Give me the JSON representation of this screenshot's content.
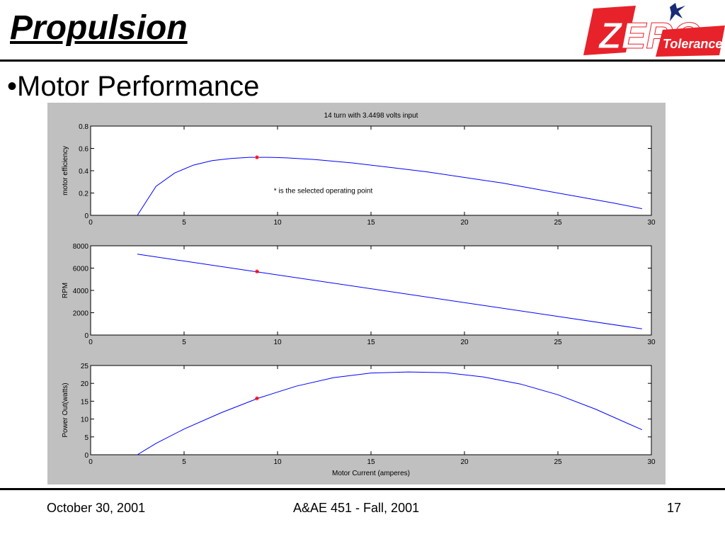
{
  "slide": {
    "title": "Propulsion",
    "subtitle": "•Motor Performance",
    "logo_text_1": "ZERO",
    "logo_text_2": "Tolerance",
    "footer_left": "October 30, 2001",
    "footer_center": "A&AE 451 - Fall, 2001",
    "footer_right": "17"
  },
  "colors": {
    "curve": "#0000ff",
    "marker": "#ff0000",
    "logo_red": "#e8222a",
    "logo_blue": "#1a2a78"
  },
  "chart_data": [
    {
      "type": "line",
      "title": "14 turn with 3.4498 volts input",
      "xlabel": "",
      "ylabel": "motor efficiency",
      "xlim": [
        0,
        30
      ],
      "ylim": [
        0,
        0.8
      ],
      "xticks": [
        "0",
        "5",
        "10",
        "15",
        "20",
        "25",
        "30"
      ],
      "yticks": [
        "0",
        "0.2",
        "0.4",
        "0.6",
        "0.8"
      ],
      "annotation": "* is the selected operating point",
      "series": [
        {
          "x": [
            2.5,
            3.5,
            4.5,
            5.5,
            6.5,
            7.5,
            8.5,
            9.5,
            10.5,
            12,
            14,
            16,
            18,
            20,
            22,
            24,
            26,
            28,
            29.5
          ],
          "values": [
            0.0,
            0.26,
            0.38,
            0.45,
            0.49,
            0.51,
            0.52,
            0.52,
            0.515,
            0.5,
            0.47,
            0.43,
            0.39,
            0.34,
            0.29,
            0.23,
            0.17,
            0.11,
            0.06
          ]
        }
      ],
      "operating_point": {
        "x": 8.9,
        "y": 0.52
      }
    },
    {
      "type": "line",
      "xlabel": "",
      "ylabel": "RPM",
      "xlim": [
        0,
        30
      ],
      "ylim": [
        0,
        8000
      ],
      "xticks": [
        "0",
        "5",
        "10",
        "15",
        "20",
        "25",
        "30"
      ],
      "yticks": [
        "0",
        "2000",
        "4000",
        "6000",
        "8000"
      ],
      "series": [
        {
          "x": [
            2.5,
            29.5
          ],
          "values": [
            7250,
            550
          ]
        }
      ],
      "operating_point": {
        "x": 8.9,
        "y": 5700
      }
    },
    {
      "type": "line",
      "xlabel": "Motor Current (amperes)",
      "ylabel": "Power Out(watts)",
      "xlim": [
        0,
        30
      ],
      "ylim": [
        0,
        25
      ],
      "xticks": [
        "0",
        "5",
        "10",
        "15",
        "20",
        "25",
        "30"
      ],
      "yticks": [
        "0",
        "5",
        "10",
        "15",
        "20",
        "25"
      ],
      "series": [
        {
          "x": [
            2.5,
            3.5,
            5,
            7,
            9,
            11,
            13,
            15,
            17,
            19,
            21,
            23,
            25,
            27,
            29.5
          ],
          "values": [
            0,
            3.2,
            7.2,
            11.8,
            15.9,
            19.2,
            21.6,
            22.9,
            23.2,
            23.0,
            21.8,
            19.8,
            16.8,
            12.8,
            7.0
          ]
        }
      ],
      "operating_point": {
        "x": 8.9,
        "y": 15.8
      }
    }
  ]
}
